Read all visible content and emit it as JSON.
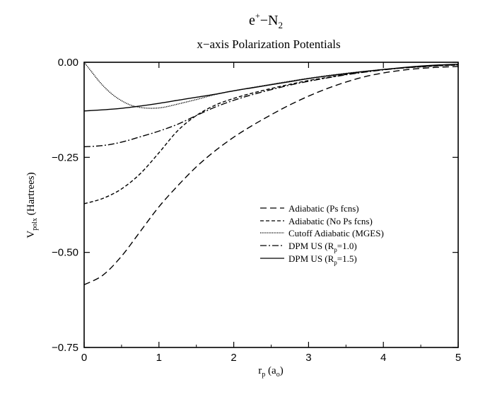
{
  "chart_data": {
    "type": "line",
    "title": {
      "main": "e",
      "main_sup": "+",
      "main_rest": "−N",
      "main_sub": "2",
      "subtitle": "x−axis Polarization Potentials"
    },
    "xlabel": {
      "main": "r",
      "sub": "p",
      "rest": " (a",
      "sub2": "o",
      "end": ")"
    },
    "ylabel": {
      "main": "V",
      "sub": "polx",
      "rest": " (Hartrees)"
    },
    "xlim": [
      0,
      5
    ],
    "ylim": [
      -0.75,
      0.0
    ],
    "xticks": [
      0,
      1,
      2,
      3,
      4,
      5
    ],
    "xtick_labels": [
      "0",
      "1",
      "2",
      "3",
      "4",
      "5"
    ],
    "yticks": [
      0.0,
      -0.25,
      -0.5,
      -0.75
    ],
    "ytick_labels": [
      "0.00",
      "−0.25",
      "−0.50",
      "−0.75"
    ],
    "grid": false,
    "legend_position": "right-center",
    "series": [
      {
        "name": "Adiabatic (Ps fcns)",
        "style": "long-dash",
        "x": [
          0,
          0.25,
          0.5,
          0.75,
          1.0,
          1.25,
          1.5,
          1.75,
          2.0,
          2.25,
          2.5,
          2.75,
          3.0,
          3.25,
          3.5,
          3.75,
          4.0,
          4.25,
          4.5,
          4.75,
          5.0
        ],
        "y": [
          -0.585,
          -0.56,
          -0.51,
          -0.445,
          -0.38,
          -0.325,
          -0.275,
          -0.233,
          -0.197,
          -0.166,
          -0.138,
          -0.112,
          -0.089,
          -0.069,
          -0.052,
          -0.038,
          -0.028,
          -0.021,
          -0.016,
          -0.013,
          -0.011
        ]
      },
      {
        "name": "Adiabatic (No Ps fcns)",
        "style": "medium-dash",
        "x": [
          0,
          0.25,
          0.5,
          0.75,
          1.0,
          1.25,
          1.5,
          1.75,
          2.0,
          2.25,
          2.5,
          2.75,
          3.0,
          3.25,
          3.5,
          3.75,
          4.0,
          4.25,
          4.5,
          4.75,
          5.0
        ],
        "y": [
          -0.372,
          -0.358,
          -0.333,
          -0.293,
          -0.238,
          -0.18,
          -0.14,
          -0.113,
          -0.095,
          -0.081,
          -0.069,
          -0.058,
          -0.048,
          -0.04,
          -0.032,
          -0.025,
          -0.019,
          -0.015,
          -0.012,
          -0.009,
          -0.007
        ]
      },
      {
        "name": "Cutoff Adiabatic (MGES)",
        "style": "dotted",
        "x": [
          0,
          0.1,
          0.2,
          0.3,
          0.4,
          0.5,
          0.6,
          0.7,
          0.8,
          0.9,
          1.0,
          1.1,
          1.25,
          1.5,
          1.75,
          2.0,
          2.5,
          3.0,
          3.5,
          4.0,
          4.5,
          5.0
        ],
        "y": [
          0.0,
          -0.025,
          -0.05,
          -0.071,
          -0.088,
          -0.101,
          -0.111,
          -0.117,
          -0.12,
          -0.121,
          -0.12,
          -0.117,
          -0.11,
          -0.098,
          -0.085,
          -0.075,
          -0.058,
          -0.042,
          -0.029,
          -0.019,
          -0.012,
          -0.007
        ]
      },
      {
        "name": "DPM US (R",
        "name_sub": "p",
        "name_rest": "=1.0)",
        "style": "dash-dot",
        "x": [
          0,
          0.25,
          0.5,
          0.75,
          1.0,
          1.25,
          1.5,
          1.75,
          2.0,
          2.25,
          2.5,
          2.75,
          3.0,
          3.25,
          3.5,
          3.75,
          4.0,
          4.25,
          4.5,
          4.75,
          5.0
        ],
        "y": [
          -0.222,
          -0.219,
          -0.21,
          -0.196,
          -0.181,
          -0.163,
          -0.14,
          -0.118,
          -0.1,
          -0.085,
          -0.072,
          -0.06,
          -0.05,
          -0.041,
          -0.033,
          -0.026,
          -0.02,
          -0.015,
          -0.011,
          -0.008,
          -0.006
        ]
      },
      {
        "name": "DPM US (R",
        "name_sub": "p",
        "name_rest": "=1.5)",
        "style": "solid",
        "x": [
          0,
          0.25,
          0.5,
          0.75,
          1.0,
          1.25,
          1.5,
          1.75,
          2.0,
          2.25,
          2.5,
          2.75,
          3.0,
          3.25,
          3.5,
          3.75,
          4.0,
          4.25,
          4.5,
          4.75,
          5.0
        ],
        "y": [
          -0.128,
          -0.125,
          -0.121,
          -0.115,
          -0.108,
          -0.1,
          -0.092,
          -0.084,
          -0.075,
          -0.067,
          -0.059,
          -0.051,
          -0.043,
          -0.036,
          -0.03,
          -0.024,
          -0.019,
          -0.014,
          -0.01,
          -0.007,
          -0.005
        ]
      }
    ]
  }
}
